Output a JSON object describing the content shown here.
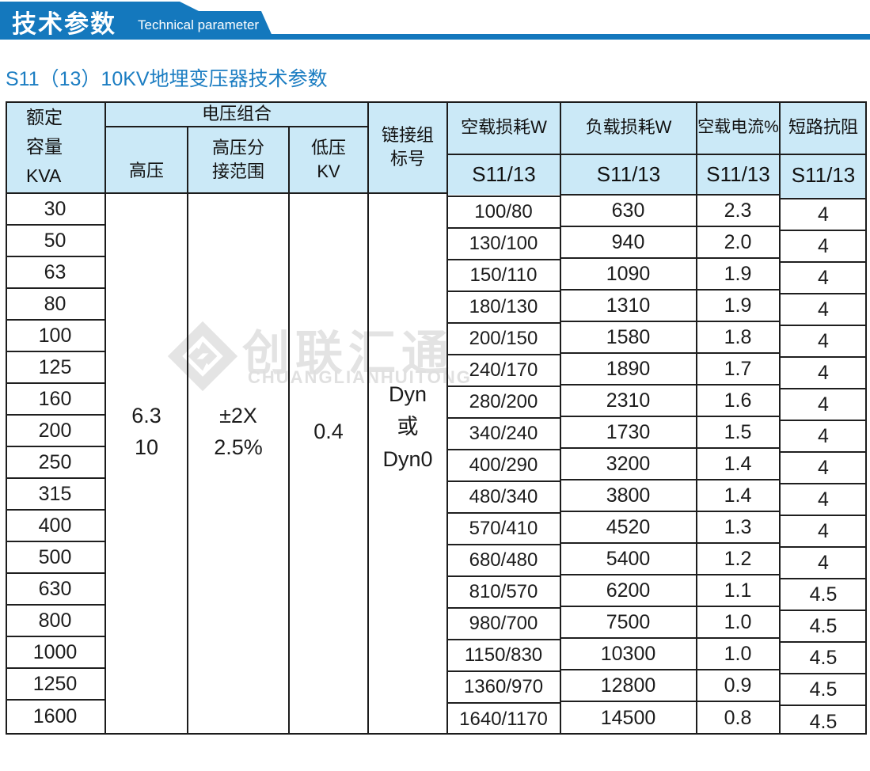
{
  "banner": {
    "title_zh": "技术参数",
    "title_en": "Technical parameter"
  },
  "page_title": "S11（13）10KV地埋变压器技术参数",
  "watermark": {
    "name_zh": "创联汇通",
    "name_en": "CHUANGLIANHUITONG"
  },
  "colors": {
    "banner_blue": "#1478bd",
    "title_blue": "#1b7dc2",
    "header_bg": "#cbe9f7",
    "border": "#1c1c1c",
    "watermark_gray": "#e3e3e3"
  },
  "table": {
    "headers": {
      "rated_capacity_lines": [
        "额定",
        "容量",
        "KVA"
      ],
      "voltage_group": "电压组合",
      "high_voltage": "高压",
      "hv_tap_lines": [
        "高压分",
        "接范围"
      ],
      "low_voltage_lines": [
        "低压",
        "KV"
      ],
      "vector_group_lines": [
        "链接组",
        "标号"
      ],
      "no_load_loss": "空载损耗W",
      "load_loss": "负载损耗W",
      "no_load_current": "空载电流%",
      "impedance": "短路抗阻",
      "model_no_load_loss": "S11/13",
      "model_load_loss": "S11/13",
      "model_no_load_current": "S11/13",
      "model_impedance": "S11/13"
    },
    "merged_cells": {
      "high_voltage_lines": [
        "6.3",
        "10"
      ],
      "tap_range_lines": [
        "±2X",
        "2.5%"
      ],
      "low_voltage": "0.4",
      "vector_group_lines": [
        "Dyn",
        "或",
        "Dyn0"
      ]
    },
    "columns": [
      {
        "key": "rated-capacity-kva",
        "values": [
          "30",
          "50",
          "63",
          "80",
          "100",
          "125",
          "160",
          "200",
          "250",
          "315",
          "400",
          "500",
          "630",
          "800",
          "1000",
          "1250",
          "1600"
        ]
      },
      {
        "key": "no-load-loss-w",
        "values": [
          "100/80",
          "130/100",
          "150/110",
          "180/130",
          "200/150",
          "240/170",
          "280/200",
          "340/240",
          "400/290",
          "480/340",
          "570/410",
          "680/480",
          "810/570",
          "980/700",
          "1150/830",
          "1360/970",
          "1640/1170"
        ]
      },
      {
        "key": "load-loss-w",
        "values": [
          "630",
          "940",
          "1090",
          "1310",
          "1580",
          "1890",
          "2310",
          "1730",
          "3200",
          "3800",
          "4520",
          "5400",
          "6200",
          "7500",
          "10300",
          "12800",
          "14500"
        ]
      },
      {
        "key": "no-load-current-pct",
        "values": [
          "2.3",
          "2.0",
          "1.9",
          "1.9",
          "1.8",
          "1.7",
          "1.6",
          "1.5",
          "1.4",
          "1.4",
          "1.3",
          "1.2",
          "1.1",
          "1.0",
          "1.0",
          "0.9",
          "0.8"
        ]
      },
      {
        "key": "short-circuit-impedance",
        "values": [
          "4",
          "4",
          "4",
          "4",
          "4",
          "4",
          "4",
          "4",
          "4",
          "4",
          "4",
          "4",
          "4.5",
          "4.5",
          "4.5",
          "4.5",
          "4.5"
        ]
      }
    ]
  }
}
